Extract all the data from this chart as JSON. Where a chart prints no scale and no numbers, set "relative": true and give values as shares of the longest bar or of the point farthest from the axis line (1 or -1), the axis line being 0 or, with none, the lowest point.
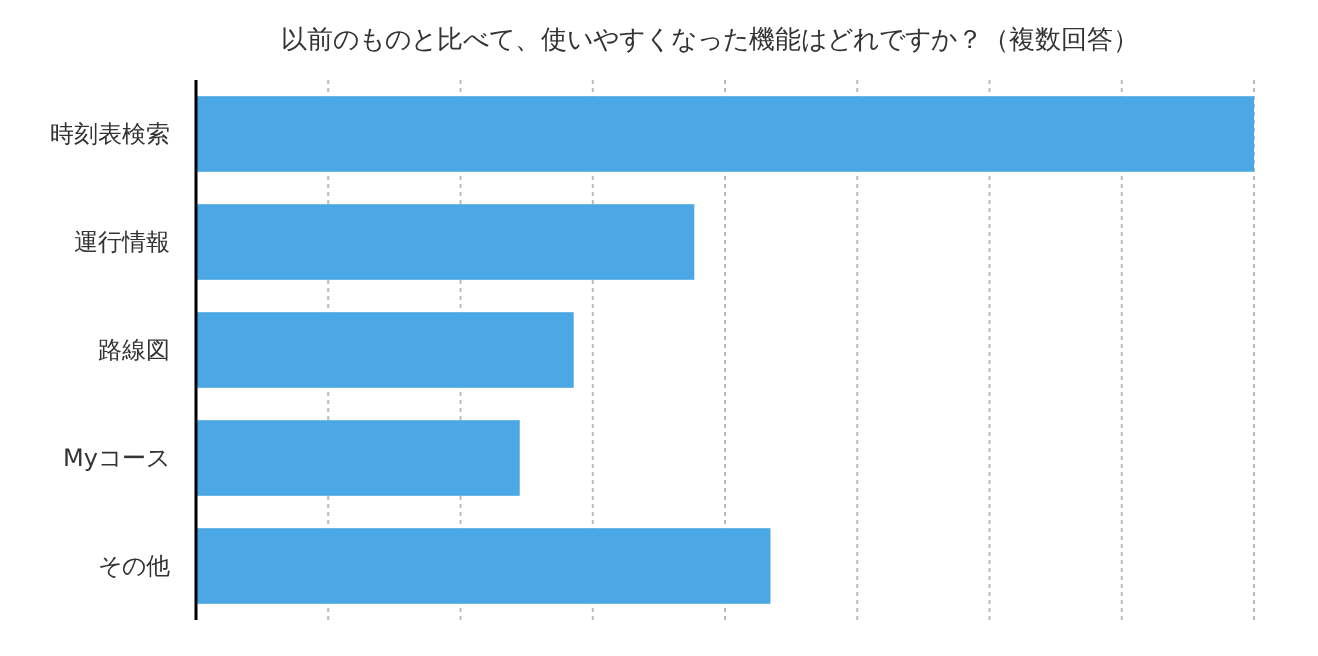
{
  "chart_data": {
    "type": "bar",
    "orientation": "horizontal",
    "relative": true,
    "title": "以前のものと比べて、使いやすくなった機能はどれですか？（複数回答）",
    "categories": [
      "時刻表検索",
      "運行情報",
      "路線図",
      "Myコース",
      "その他"
    ],
    "values": [
      1,
      0.471,
      0.357,
      0.306,
      0.543
    ],
    "color": "#4ca8e5",
    "grid": "x"
  }
}
